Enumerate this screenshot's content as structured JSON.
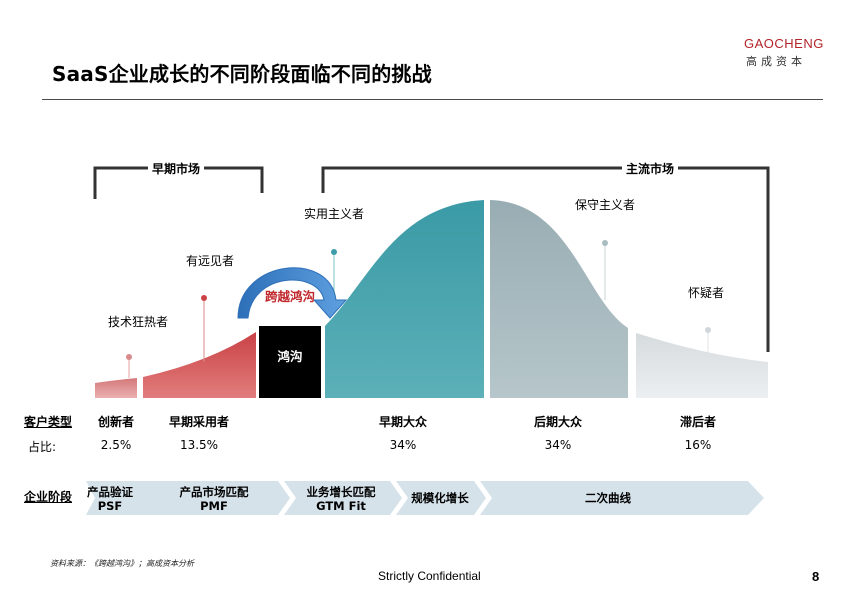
{
  "header": {
    "title": "SaaS企业成长的不同阶段面临不同的挑战",
    "logo_en": "GAOCHENG",
    "logo_cn": "高成资本"
  },
  "brackets": {
    "early_market": "早期市场",
    "mainstream_market": "主流市场"
  },
  "curve_labels": {
    "innovators": "技术狂热者",
    "visionaries": "有远见者",
    "pragmatists": "实用主义者",
    "conservatives": "保守主义者",
    "skeptics": "怀疑者",
    "chasm": "鸿沟",
    "crossing": "跨越鸿沟"
  },
  "customer_types": {
    "row_label": "客户类型",
    "items": [
      "创新者",
      "早期采用者",
      "早期大众",
      "后期大众",
      "滞后者"
    ]
  },
  "ratios": {
    "row_label": "占比:",
    "values": [
      "2.5%",
      "13.5%",
      "34%",
      "34%",
      "16%"
    ]
  },
  "stages": {
    "row_label": "企业阶段",
    "items": [
      {
        "line1": "产品验证",
        "line2": "PSF"
      },
      {
        "line1": "产品市场匹配",
        "line2": "PMF"
      },
      {
        "line1": "业务增长匹配",
        "line2": "GTM Fit"
      },
      {
        "line1": "规模化增长",
        "line2": ""
      },
      {
        "line1": "二次曲线",
        "line2": ""
      }
    ]
  },
  "colors": {
    "red": "#d05456",
    "teal": "#3d9da8",
    "gray_blue": "#9fb3b8",
    "light_gray": "#dfe3e5",
    "chasm": "#000000",
    "stage_bar": "#d6e2ea",
    "accent_red": "#b3242a",
    "arrow_blue": "#3b7cc4"
  },
  "footer": {
    "source": "资料来源：《跨越鸿沟》；高成资本分析",
    "center": "Strictly Confidential",
    "page": "8"
  }
}
